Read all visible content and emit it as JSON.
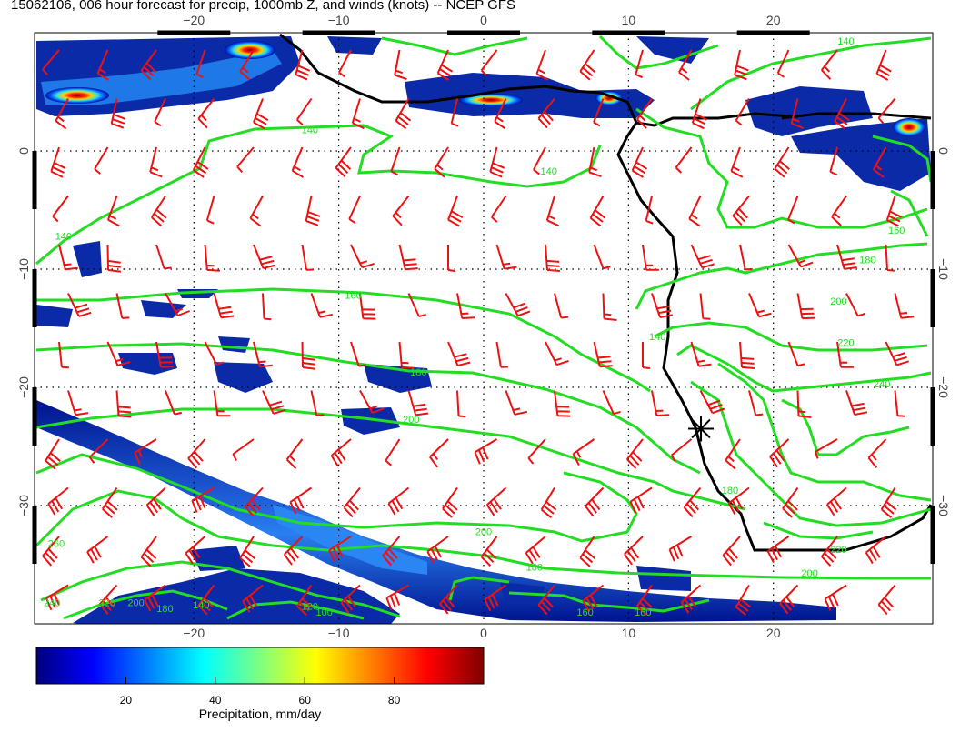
{
  "title": "15062106, 006 hour forecast for precip, 1000mb Z, and winds (knots) -- NCEP GFS",
  "map": {
    "lon_range": [
      -31,
      31
    ],
    "lat_range": [
      -40,
      10
    ],
    "lon_ticks": [
      -20,
      -10,
      0,
      10,
      20
    ],
    "lat_ticks": [
      0,
      -10,
      -20,
      -30
    ],
    "lon_tick_labels": [
      "−20",
      "−10",
      "0",
      "10",
      "20"
    ],
    "lat_tick_labels": [
      "0",
      "−10",
      "−20",
      "−30"
    ],
    "gridlines": "dotted",
    "coastline_color": "#000000",
    "contour_color": "#22dd22",
    "barb_color": "#ee1111",
    "marker": {
      "symbol": "asterisk",
      "lon": 15,
      "lat": -23.5
    },
    "contour_labels": [
      {
        "text": "140",
        "lon": -12,
        "lat": 1.5
      },
      {
        "text": "140",
        "lon": 4.5,
        "lat": -2
      },
      {
        "text": "140",
        "lon": -29,
        "lat": -7.5
      },
      {
        "text": "160",
        "lon": -9,
        "lat": -12.5
      },
      {
        "text": "180",
        "lon": -4.5,
        "lat": -19
      },
      {
        "text": "200",
        "lon": -5,
        "lat": -23
      },
      {
        "text": "200",
        "lon": 0,
        "lat": -32.5
      },
      {
        "text": "180",
        "lon": 3.5,
        "lat": -35.5
      },
      {
        "text": "160",
        "lon": 7,
        "lat": -39.3
      },
      {
        "text": "160",
        "lon": 11,
        "lat": -39.3
      },
      {
        "text": "260",
        "lon": -29.5,
        "lat": -33.5
      },
      {
        "text": "240",
        "lon": -29.8,
        "lat": -38.5
      },
      {
        "text": "220",
        "lon": -26,
        "lat": -38.5
      },
      {
        "text": "200",
        "lon": -24,
        "lat": -38.5
      },
      {
        "text": "180",
        "lon": -22,
        "lat": -39
      },
      {
        "text": "140",
        "lon": -19.5,
        "lat": -38.7
      },
      {
        "text": "120",
        "lon": -12,
        "lat": -38.8
      },
      {
        "text": "100",
        "lon": -11,
        "lat": -39.3
      },
      {
        "text": "200",
        "lon": 24.5,
        "lat": -13
      },
      {
        "text": "160",
        "lon": 28.5,
        "lat": -7
      },
      {
        "text": "180",
        "lon": 26.5,
        "lat": -9.5
      },
      {
        "text": "220",
        "lon": 25,
        "lat": -16.5
      },
      {
        "text": "240",
        "lon": 27.5,
        "lat": -20
      },
      {
        "text": "220",
        "lon": 24.5,
        "lat": -34
      },
      {
        "text": "200",
        "lon": 22.5,
        "lat": -36
      },
      {
        "text": "180",
        "lon": 17,
        "lat": -29
      },
      {
        "text": "140",
        "lon": 25,
        "lat": 9
      },
      {
        "text": "140",
        "lon": 12,
        "lat": -16
      }
    ]
  },
  "colorbar": {
    "label": "Precipitation, mm/day",
    "range": [
      0,
      100
    ],
    "ticks": [
      20,
      40,
      60,
      80
    ],
    "colors": [
      "#00007f",
      "#0000ff",
      "#007fff",
      "#00ffff",
      "#7fff7f",
      "#ffff00",
      "#ff7f00",
      "#ff0000",
      "#7f0000"
    ]
  }
}
